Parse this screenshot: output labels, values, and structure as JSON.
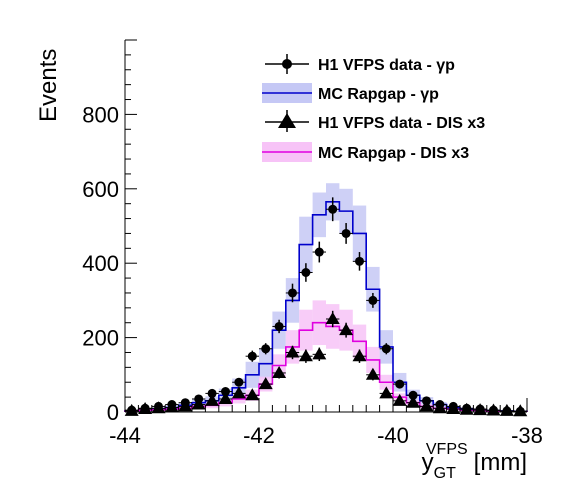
{
  "chart_data": {
    "type": "line",
    "title": "",
    "xlabel": {
      "main": "y",
      "sub": "GT",
      "sup": "VFPS",
      "unit": "[mm]"
    },
    "ylabel": "Events",
    "xlim": [
      -44,
      -38
    ],
    "ylim": [
      0,
      1000
    ],
    "xticks": [
      -44,
      -42,
      -40,
      -38
    ],
    "xtick_labels": [
      "-44",
      "-42",
      "-40",
      "-38"
    ],
    "yticks": [
      0,
      200,
      400,
      600,
      800
    ],
    "ytick_labels": [
      "0",
      "200",
      "400",
      "600",
      "800"
    ],
    "bin_edges": [
      -44.0,
      -43.8,
      -43.6,
      -43.4,
      -43.2,
      -43.0,
      -42.8,
      -42.6,
      -42.4,
      -42.2,
      -42.0,
      -41.8,
      -41.6,
      -41.4,
      -41.2,
      -41.0,
      -40.8,
      -40.6,
      -40.4,
      -40.2,
      -40.0,
      -39.8,
      -39.6,
      -39.4,
      -39.2,
      -39.0,
      -38.8,
      -38.6,
      -38.4,
      -38.2,
      -38.0
    ],
    "bin_centers": [
      -43.9,
      -43.7,
      -43.5,
      -43.3,
      -43.1,
      -42.9,
      -42.7,
      -42.5,
      -42.3,
      -42.1,
      -41.9,
      -41.7,
      -41.5,
      -41.3,
      -41.1,
      -40.9,
      -40.7,
      -40.5,
      -40.3,
      -40.1,
      -39.9,
      -39.7,
      -39.5,
      -39.3,
      -39.1,
      -38.9,
      -38.7,
      -38.5,
      -38.3,
      -38.1
    ],
    "legend": {
      "position": "top-right",
      "entries": [
        {
          "label": "H1 VFPS data - γp",
          "marker": "circle"
        },
        {
          "label": "MC Rapgap - γp",
          "marker": "band-line",
          "color": "#0000cc",
          "band_color": "#c5c8f5"
        },
        {
          "label": "H1 VFPS data - DIS x3",
          "marker": "triangle"
        },
        {
          "label": "MC Rapgap - DIS x3",
          "marker": "band-line",
          "color": "#e000e0",
          "band_color": "#f7c3f7"
        }
      ]
    },
    "series": [
      {
        "name": "H1 VFPS data - γp",
        "kind": "points",
        "marker": "circle",
        "y": [
          5,
          10,
          15,
          20,
          25,
          35,
          50,
          55,
          80,
          150,
          170,
          230,
          320,
          375,
          430,
          545,
          480,
          405,
          300,
          170,
          75,
          45,
          30,
          20,
          15,
          10,
          8,
          5,
          3,
          2
        ],
        "err": [
          3,
          4,
          5,
          6,
          6,
          7,
          9,
          9,
          10,
          15,
          15,
          18,
          25,
          25,
          28,
          32,
          28,
          25,
          20,
          15,
          10,
          8,
          6,
          5,
          4,
          4,
          3,
          3,
          2,
          2
        ]
      },
      {
        "name": "MC Rapgap - γp",
        "kind": "histogram",
        "color": "#0000cc",
        "band_color": "#c5c8f5",
        "y": [
          3,
          5,
          8,
          12,
          18,
          25,
          30,
          45,
          65,
          100,
          130,
          220,
          300,
          450,
          530,
          565,
          540,
          480,
          330,
          175,
          80,
          45,
          30,
          20,
          12,
          8,
          5,
          4,
          3,
          2
        ],
        "band": [
          2,
          3,
          4,
          5,
          7,
          10,
          12,
          18,
          25,
          35,
          40,
          50,
          60,
          75,
          60,
          50,
          60,
          75,
          60,
          45,
          25,
          15,
          10,
          7,
          5,
          4,
          3,
          2,
          2,
          1
        ]
      },
      {
        "name": "H1 VFPS data - DIS x3",
        "kind": "points",
        "marker": "triangle",
        "y": [
          3,
          8,
          10,
          12,
          15,
          20,
          30,
          35,
          50,
          45,
          75,
          105,
          160,
          150,
          155,
          250,
          220,
          150,
          100,
          50,
          30,
          25,
          15,
          10,
          8,
          6,
          5,
          4,
          3,
          2
        ],
        "err": [
          2,
          3,
          4,
          4,
          5,
          6,
          7,
          8,
          9,
          10,
          12,
          15,
          18,
          18,
          18,
          22,
          20,
          18,
          15,
          10,
          8,
          6,
          5,
          4,
          3,
          3,
          3,
          2,
          2,
          2
        ]
      },
      {
        "name": "MC Rapgap - DIS x3",
        "kind": "histogram",
        "color": "#e000e0",
        "band_color": "#f7c3f7",
        "y": [
          3,
          5,
          6,
          8,
          10,
          15,
          18,
          25,
          35,
          45,
          75,
          125,
          175,
          220,
          240,
          230,
          220,
          190,
          140,
          80,
          40,
          25,
          15,
          10,
          8,
          5,
          4,
          3,
          2,
          1
        ],
        "band": [
          2,
          2,
          3,
          3,
          4,
          6,
          8,
          10,
          12,
          15,
          20,
          30,
          45,
          55,
          60,
          60,
          55,
          45,
          35,
          20,
          10,
          7,
          5,
          4,
          3,
          2,
          2,
          2,
          1,
          1
        ]
      }
    ],
    "grid": false
  }
}
